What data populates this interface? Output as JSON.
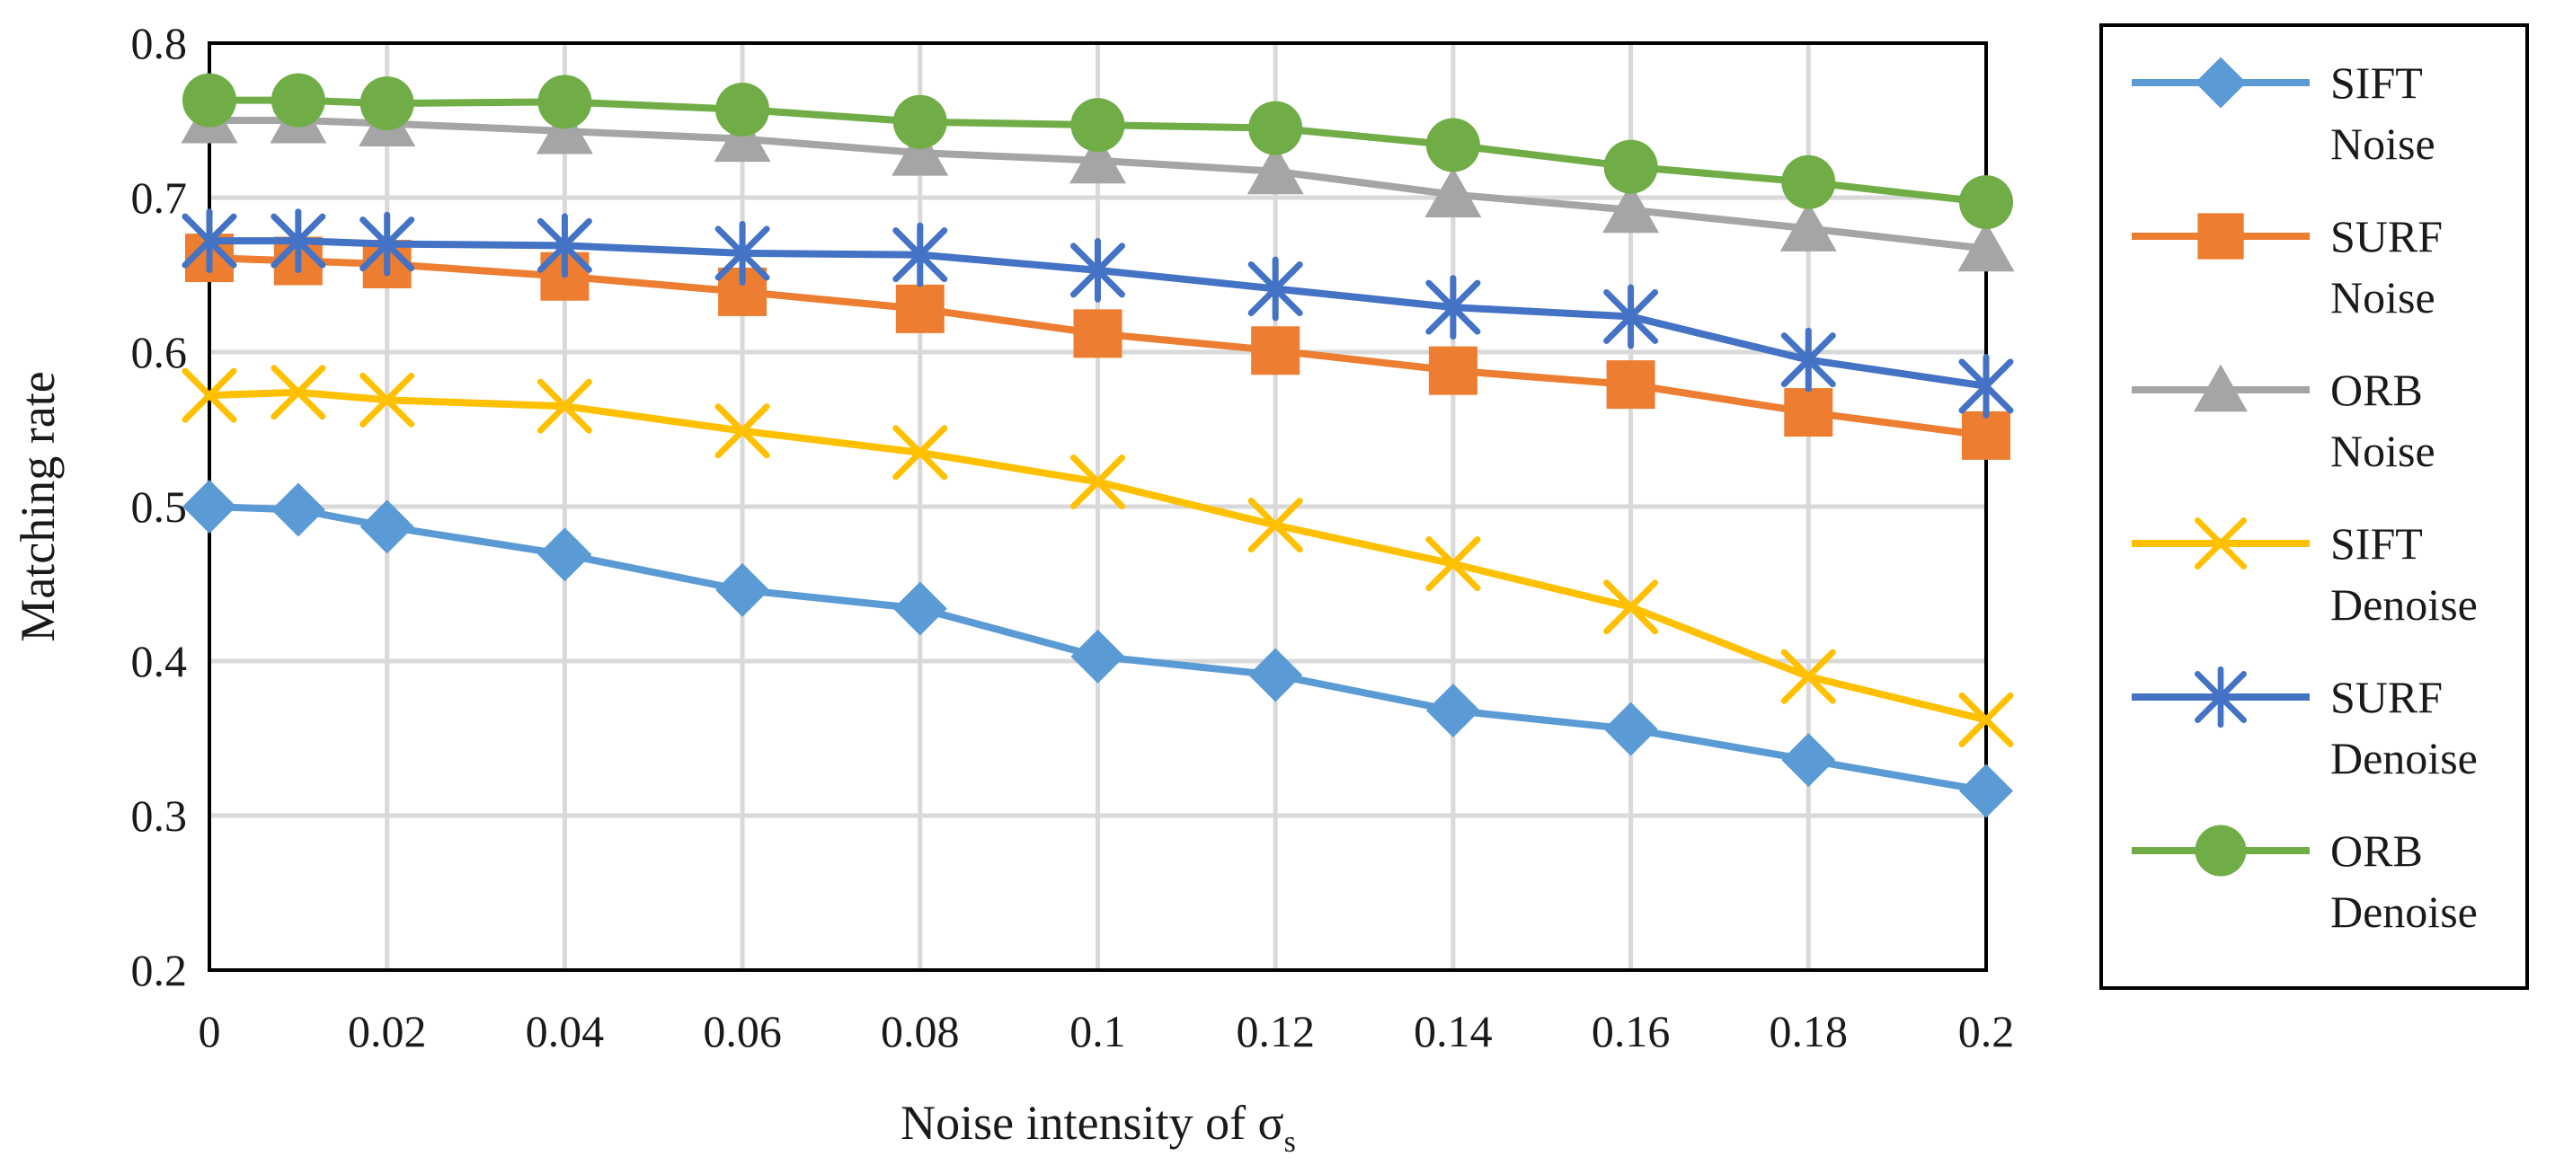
{
  "chart_data": {
    "type": "line",
    "title": "",
    "xlabel": "Noise intensity of σ",
    "xlabel_subscript": "s",
    "ylabel": "Matching rate",
    "x": [
      0,
      0.01,
      0.02,
      0.04,
      0.06,
      0.08,
      0.1,
      0.12,
      0.14,
      0.16,
      0.18,
      0.2
    ],
    "xlim": [
      0,
      0.2
    ],
    "xticks": [
      0,
      0.02,
      0.04,
      0.06,
      0.08,
      0.1,
      0.12,
      0.14,
      0.16,
      0.18,
      0.2
    ],
    "xtick_labels": [
      "0",
      "0.02",
      "0.04",
      "0.06",
      "0.08",
      "0.1",
      "0.12",
      "0.14",
      "0.16",
      "0.18",
      "0.2"
    ],
    "ylim": [
      0.2,
      0.8
    ],
    "yticks": [
      0.2,
      0.3,
      0.4,
      0.5,
      0.6,
      0.7,
      0.8
    ],
    "ytick_labels": [
      "0.2",
      "0.3",
      "0.4",
      "0.5",
      "0.6",
      "0.7",
      "0.8"
    ],
    "grid": true,
    "legend_position": "right",
    "series": [
      {
        "name": [
          "SIFT",
          "Noise"
        ],
        "marker": "diamond",
        "color": "#5B9BD5",
        "values": [
          0.5,
          0.498,
          0.487,
          0.469,
          0.446,
          0.434,
          0.403,
          0.391,
          0.368,
          0.356,
          0.336,
          0.316
        ]
      },
      {
        "name": [
          "SURF",
          "Noise"
        ],
        "marker": "square",
        "color": "#ED7D31",
        "values": [
          0.661,
          0.659,
          0.657,
          0.649,
          0.639,
          0.628,
          0.612,
          0.601,
          0.588,
          0.579,
          0.561,
          0.546
        ]
      },
      {
        "name": [
          "ORB",
          "Noise"
        ],
        "marker": "triangle",
        "color": "#A5A5A5",
        "values": [
          0.75,
          0.75,
          0.748,
          0.743,
          0.738,
          0.729,
          0.724,
          0.717,
          0.702,
          0.692,
          0.68,
          0.667
        ]
      },
      {
        "name": [
          "SIFT",
          "Denoise"
        ],
        "marker": "x",
        "color": "#FFC000",
        "values": [
          0.572,
          0.574,
          0.569,
          0.565,
          0.549,
          0.535,
          0.516,
          0.488,
          0.463,
          0.435,
          0.39,
          0.362
        ]
      },
      {
        "name": [
          "SURF",
          "Denoise"
        ],
        "marker": "asterisk",
        "color": "#4472C4",
        "values": [
          0.672,
          0.672,
          0.67,
          0.669,
          0.664,
          0.663,
          0.653,
          0.641,
          0.629,
          0.623,
          0.595,
          0.578
        ]
      },
      {
        "name": [
          "ORB",
          "Denoise"
        ],
        "marker": "circle",
        "color": "#70AD47",
        "values": [
          0.763,
          0.763,
          0.761,
          0.762,
          0.757,
          0.749,
          0.747,
          0.745,
          0.734,
          0.72,
          0.71,
          0.697
        ]
      }
    ]
  }
}
